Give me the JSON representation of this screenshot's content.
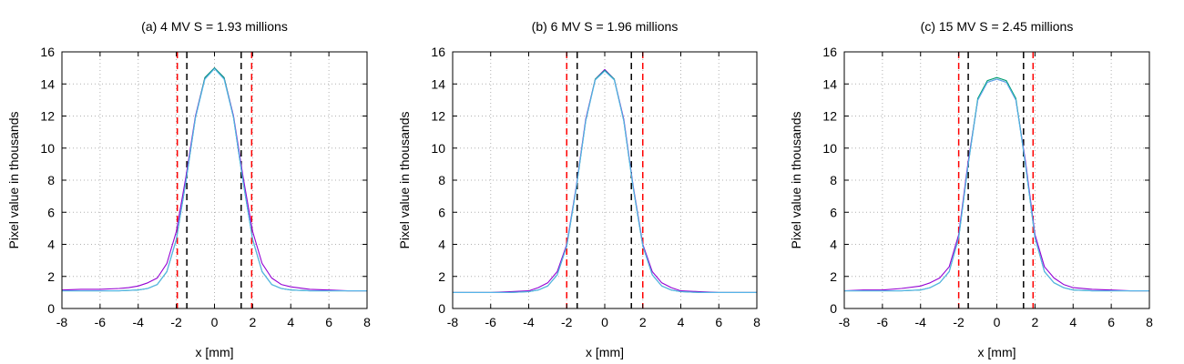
{
  "chart_data": [
    {
      "type": "line",
      "title": "(a) 4 MV S = 1.93 millions",
      "xlabel": "x [mm]",
      "ylabel": "Pixel value in thousands",
      "xlim": [
        -8,
        8
      ],
      "ylim": [
        0,
        16
      ],
      "xticks": [
        "-8",
        "-6",
        "-4",
        "-2",
        "0",
        "2",
        "4",
        "6",
        "8"
      ],
      "yticks": [
        "0",
        "2",
        "4",
        "6",
        "8",
        "10",
        "12",
        "14",
        "16"
      ],
      "grid": true,
      "vlines": [
        {
          "x": -1.95,
          "color": "#ff0000"
        },
        {
          "x": -1.45,
          "color": "#000000"
        },
        {
          "x": 1.4,
          "color": "#000000"
        },
        {
          "x": 1.95,
          "color": "#ff0000"
        }
      ],
      "series": [
        {
          "color": "#9400d3",
          "x": [
            -8,
            -7,
            -6,
            -5,
            -4.5,
            -4,
            -3.5,
            -3,
            -2.5,
            -2,
            -1.5,
            -1,
            -0.5,
            0,
            0.5,
            1,
            1.5,
            2,
            2.5,
            3,
            3.5,
            4,
            5,
            6,
            7,
            8
          ],
          "y": [
            1.15,
            1.2,
            1.2,
            1.25,
            1.3,
            1.4,
            1.6,
            1.9,
            2.8,
            4.8,
            8.2,
            12.0,
            14.4,
            15.0,
            14.4,
            12.0,
            8.2,
            4.8,
            2.8,
            1.9,
            1.5,
            1.35,
            1.2,
            1.15,
            1.1,
            1.1
          ]
        },
        {
          "color": "#009e73",
          "x": [
            -8,
            -7,
            -6,
            -5,
            -4,
            -3.5,
            -3,
            -2.5,
            -2,
            -1.5,
            -1,
            -0.5,
            0,
            0.5,
            1,
            1.5,
            2,
            2.5,
            3,
            3.5,
            4,
            5,
            6,
            7,
            8
          ],
          "y": [
            1.1,
            1.1,
            1.1,
            1.1,
            1.15,
            1.25,
            1.5,
            2.3,
            4.3,
            7.9,
            11.9,
            14.4,
            15.0,
            14.4,
            11.9,
            7.9,
            4.3,
            2.3,
            1.5,
            1.25,
            1.15,
            1.1,
            1.1,
            1.1,
            1.1
          ]
        },
        {
          "color": "#56b4e9",
          "x": [
            -8,
            -7,
            -6,
            -5,
            -4,
            -3.5,
            -3,
            -2.5,
            -2,
            -1.5,
            -1,
            -0.5,
            0,
            0.5,
            1,
            1.5,
            2,
            2.5,
            3,
            3.5,
            4,
            5,
            6,
            7,
            8
          ],
          "y": [
            1.1,
            1.1,
            1.1,
            1.1,
            1.15,
            1.25,
            1.5,
            2.3,
            4.3,
            7.9,
            11.9,
            14.3,
            14.95,
            14.3,
            11.9,
            7.9,
            4.3,
            2.3,
            1.5,
            1.25,
            1.15,
            1.1,
            1.1,
            1.1,
            1.1
          ]
        }
      ]
    },
    {
      "type": "line",
      "title": "(b) 6 MV S = 1.96 millions",
      "xlabel": "x [mm]",
      "ylabel": "Pixel value in thousands",
      "xlim": [
        -8,
        8
      ],
      "ylim": [
        0,
        16
      ],
      "xticks": [
        "-8",
        "-6",
        "-4",
        "-2",
        "0",
        "2",
        "4",
        "6",
        "8"
      ],
      "yticks": [
        "0",
        "2",
        "4",
        "6",
        "8",
        "10",
        "12",
        "14",
        "16"
      ],
      "grid": true,
      "vlines": [
        {
          "x": -2.0,
          "color": "#ff0000"
        },
        {
          "x": -1.45,
          "color": "#000000"
        },
        {
          "x": 1.4,
          "color": "#000000"
        },
        {
          "x": 2.0,
          "color": "#ff0000"
        }
      ],
      "series": [
        {
          "color": "#9400d3",
          "x": [
            -8,
            -7,
            -6,
            -5,
            -4,
            -3.5,
            -3,
            -2.5,
            -2,
            -1.5,
            -1,
            -0.5,
            0,
            0.5,
            1,
            1.5,
            2,
            2.5,
            3,
            3.5,
            4,
            5,
            6,
            7,
            8
          ],
          "y": [
            1.0,
            1.0,
            1.0,
            1.05,
            1.1,
            1.3,
            1.6,
            2.3,
            4.0,
            7.6,
            11.8,
            14.3,
            14.9,
            14.3,
            11.8,
            7.6,
            4.0,
            2.3,
            1.6,
            1.3,
            1.1,
            1.05,
            1.0,
            1.0,
            1.0
          ]
        },
        {
          "color": "#009e73",
          "x": [
            -8,
            -7,
            -6,
            -5,
            -4,
            -3.5,
            -3,
            -2.5,
            -2,
            -1.5,
            -1,
            -0.5,
            0,
            0.5,
            1,
            1.5,
            2,
            2.5,
            3,
            3.5,
            4,
            5,
            6,
            7,
            8
          ],
          "y": [
            1.0,
            1.0,
            1.0,
            1.0,
            1.05,
            1.15,
            1.4,
            2.1,
            3.9,
            7.5,
            11.7,
            14.3,
            14.85,
            14.3,
            11.7,
            7.5,
            3.9,
            2.1,
            1.4,
            1.15,
            1.05,
            1.0,
            1.0,
            1.0,
            1.0
          ]
        },
        {
          "color": "#56b4e9",
          "x": [
            -8,
            -7,
            -6,
            -5,
            -4,
            -3.5,
            -3,
            -2.5,
            -2,
            -1.5,
            -1,
            -0.5,
            0,
            0.5,
            1,
            1.5,
            2,
            2.5,
            3,
            3.5,
            4,
            5,
            6,
            7,
            8
          ],
          "y": [
            1.0,
            1.0,
            1.0,
            1.0,
            1.05,
            1.15,
            1.4,
            2.1,
            3.9,
            7.5,
            11.7,
            14.25,
            14.8,
            14.25,
            11.7,
            7.5,
            3.9,
            2.1,
            1.4,
            1.15,
            1.05,
            1.0,
            1.0,
            1.0,
            1.0
          ]
        }
      ]
    },
    {
      "type": "line",
      "title": "(c) 15 MV S = 2.45 millions",
      "xlabel": "x [mm]",
      "ylabel": "Pixel value in thousands",
      "xlim": [
        -8,
        8
      ],
      "ylim": [
        0,
        16
      ],
      "xticks": [
        "-8",
        "-6",
        "-4",
        "-2",
        "0",
        "2",
        "4",
        "6",
        "8"
      ],
      "yticks": [
        "0",
        "2",
        "4",
        "6",
        "8",
        "10",
        "12",
        "14",
        "16"
      ],
      "grid": true,
      "vlines": [
        {
          "x": -2.0,
          "color": "#ff0000"
        },
        {
          "x": -1.5,
          "color": "#000000"
        },
        {
          "x": 1.4,
          "color": "#000000"
        },
        {
          "x": 1.9,
          "color": "#ff0000"
        }
      ],
      "series": [
        {
          "color": "#9400d3",
          "x": [
            -8,
            -7,
            -6,
            -5,
            -4,
            -3.5,
            -3,
            -2.5,
            -2,
            -1.5,
            -1,
            -0.5,
            0,
            0.5,
            1,
            1.5,
            2,
            2.5,
            3,
            3.5,
            4,
            5,
            6,
            7,
            8
          ],
          "y": [
            1.1,
            1.15,
            1.15,
            1.25,
            1.4,
            1.6,
            1.9,
            2.6,
            4.6,
            9.2,
            13.0,
            14.1,
            14.3,
            14.1,
            13.0,
            9.2,
            4.6,
            2.6,
            1.9,
            1.5,
            1.3,
            1.2,
            1.15,
            1.1,
            1.1
          ]
        },
        {
          "color": "#009e73",
          "x": [
            -8,
            -7,
            -6,
            -5,
            -4,
            -3.5,
            -3,
            -2.5,
            -2,
            -1.5,
            -1,
            -0.5,
            0,
            0.5,
            1,
            1.5,
            2,
            2.5,
            3,
            3.5,
            4,
            5,
            6,
            7,
            8
          ],
          "y": [
            1.1,
            1.1,
            1.1,
            1.1,
            1.15,
            1.3,
            1.6,
            2.3,
            4.4,
            9.0,
            13.1,
            14.2,
            14.4,
            14.2,
            13.1,
            9.0,
            4.4,
            2.3,
            1.6,
            1.3,
            1.15,
            1.1,
            1.1,
            1.1,
            1.1
          ]
        },
        {
          "color": "#56b4e9",
          "x": [
            -8,
            -7,
            -6,
            -5,
            -4,
            -3.5,
            -3,
            -2.5,
            -2,
            -1.5,
            -1,
            -0.5,
            0,
            0.5,
            1,
            1.5,
            2,
            2.5,
            3,
            3.5,
            4,
            5,
            6,
            7,
            8
          ],
          "y": [
            1.1,
            1.1,
            1.1,
            1.1,
            1.15,
            1.3,
            1.6,
            2.3,
            4.4,
            9.0,
            13.0,
            14.1,
            14.3,
            14.1,
            13.0,
            9.0,
            4.4,
            2.3,
            1.6,
            1.3,
            1.15,
            1.1,
            1.1,
            1.1,
            1.1
          ]
        }
      ]
    }
  ]
}
